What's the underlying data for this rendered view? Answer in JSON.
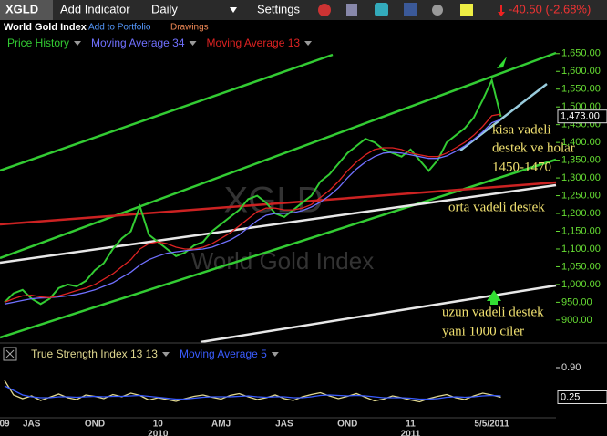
{
  "toolbar": {
    "symbol": "XGLD",
    "add_indicator": "Add Indicator",
    "interval": "Daily",
    "settings": "Settings",
    "change": "-40.50 (-2.68%)"
  },
  "header": {
    "name": "World Gold Index",
    "add_to_portfolio": "Add to Portfolio",
    "drawings": "Drawings"
  },
  "chart_data": [
    {
      "type": "line",
      "title": "World Gold Index",
      "watermark": "XGLD",
      "categories": [
        "09",
        null,
        null,
        "JAS",
        null,
        null,
        null,
        null,
        null,
        null,
        "OND",
        null,
        null,
        null,
        null,
        null,
        null,
        "10",
        null,
        null,
        null,
        null,
        null,
        null,
        "AMJ",
        null,
        null,
        null,
        null,
        null,
        null,
        "JAS",
        null,
        null,
        null,
        null,
        null,
        null,
        "OND",
        null,
        null,
        null,
        null,
        null,
        null,
        "11",
        null,
        null,
        null,
        null,
        null,
        null,
        null,
        null,
        "5/5/2011",
        null
      ],
      "x_sublabels": [
        null,
        null,
        null,
        null,
        null,
        null,
        null,
        null,
        null,
        null,
        null,
        null,
        null,
        null,
        null,
        null,
        null,
        "2010",
        null,
        null,
        null,
        null,
        null,
        null,
        null,
        null,
        null,
        null,
        null,
        null,
        null,
        null,
        null,
        null,
        null,
        null,
        null,
        null,
        null,
        null,
        null,
        null,
        null,
        null,
        null,
        "2011",
        null,
        null,
        null,
        null,
        null,
        null,
        null,
        null,
        null,
        null
      ],
      "series": [
        {
          "name": "Price History",
          "color": "#33cc33",
          "values": [
            950,
            975,
            985,
            960,
            945,
            960,
            990,
            1000,
            995,
            1010,
            1040,
            1060,
            1100,
            1130,
            1150,
            1220,
            1140,
            1120,
            1100,
            1080,
            1090,
            1110,
            1120,
            1150,
            1170,
            1190,
            1210,
            1240,
            1250,
            1230,
            1200,
            1190,
            1210,
            1230,
            1250,
            1290,
            1310,
            1340,
            1370,
            1390,
            1410,
            1400,
            1380,
            1370,
            1360,
            1380,
            1350,
            1320,
            1350,
            1400,
            1420,
            1440,
            1470,
            1520,
            1575,
            1473
          ]
        },
        {
          "name": "Moving Average 34",
          "color": "#7070ff",
          "values": [
            945,
            950,
            955,
            960,
            962,
            963,
            965,
            968,
            972,
            978,
            985,
            995,
            1005,
            1020,
            1035,
            1055,
            1070,
            1080,
            1088,
            1092,
            1095,
            1098,
            1100,
            1105,
            1115,
            1125,
            1140,
            1160,
            1180,
            1195,
            1200,
            1200,
            1202,
            1208,
            1218,
            1232,
            1250,
            1272,
            1300,
            1325,
            1345,
            1360,
            1370,
            1372,
            1370,
            1365,
            1360,
            1355,
            1355,
            1362,
            1375,
            1390,
            1408,
            1430,
            1455,
            1465
          ]
        },
        {
          "name": "Moving Average 13",
          "color": "#dd2222",
          "values": [
            950,
            960,
            968,
            970,
            965,
            963,
            968,
            975,
            983,
            990,
            1000,
            1015,
            1030,
            1050,
            1070,
            1100,
            1115,
            1120,
            1115,
            1105,
            1100,
            1100,
            1105,
            1115,
            1130,
            1145,
            1165,
            1185,
            1205,
            1215,
            1215,
            1210,
            1210,
            1215,
            1225,
            1245,
            1265,
            1290,
            1320,
            1345,
            1365,
            1380,
            1385,
            1385,
            1380,
            1370,
            1365,
            1360,
            1360,
            1370,
            1385,
            1400,
            1420,
            1445,
            1475,
            1480
          ]
        }
      ],
      "ylim": [
        838,
        1652
      ],
      "yticks": [
        {
          "value": 900,
          "label": "900.00"
        },
        {
          "value": 950,
          "label": "950.00"
        },
        {
          "value": 1000,
          "label": "1,000.00"
        },
        {
          "value": 1050,
          "label": "1,050.00"
        },
        {
          "value": 1100,
          "label": "1,100.00"
        },
        {
          "value": 1150,
          "label": "1,150.00"
        },
        {
          "value": 1200,
          "label": "1,200.00"
        },
        {
          "value": 1250,
          "label": "1,250.00"
        },
        {
          "value": 1300,
          "label": "1,300.00"
        },
        {
          "value": 1350,
          "label": "1,350.00"
        },
        {
          "value": 1400,
          "label": "1,400.00"
        },
        {
          "value": 1450,
          "label": "1,450.00"
        },
        {
          "value": 1500,
          "label": "1,500.00"
        },
        {
          "value": 1550,
          "label": "1,550.00"
        },
        {
          "value": 1600,
          "label": "1,600.00"
        },
        {
          "value": 1650,
          "label": "1,650.00"
        }
      ],
      "last_label": {
        "value": 1473,
        "label": "1,473.00"
      },
      "grid": false,
      "annotations": [
        "kisa vadeli",
        "destek ve holar",
        "1450-1470",
        "orta vadeli destek",
        "uzun vadeli destek",
        "yani 1000 ciler"
      ]
    },
    {
      "type": "line",
      "series": [
        {
          "name": "True Strength Index 13 13",
          "color": "#e0d890",
          "values": [
            0.62,
            0.3,
            0.22,
            0.28,
            0.18,
            0.25,
            0.32,
            0.24,
            0.2,
            0.3,
            0.27,
            0.22,
            0.31,
            0.26,
            0.34,
            0.29,
            0.19,
            0.24,
            0.2,
            0.16,
            0.22,
            0.27,
            0.3,
            0.25,
            0.21,
            0.29,
            0.33,
            0.26,
            0.2,
            0.24,
            0.3,
            0.22,
            0.18,
            0.26,
            0.31,
            0.35,
            0.28,
            0.22,
            0.27,
            0.33,
            0.25,
            0.17,
            0.21,
            0.28,
            0.24,
            0.19,
            0.15,
            0.22,
            0.27,
            0.31,
            0.24,
            0.2,
            0.28,
            0.34,
            0.3,
            0.25
          ]
        },
        {
          "name": "Moving Average 5",
          "color": "#3a5cff",
          "values": [
            0.5,
            0.4,
            0.3,
            0.26,
            0.24,
            0.24,
            0.26,
            0.26,
            0.25,
            0.26,
            0.27,
            0.26,
            0.27,
            0.27,
            0.28,
            0.29,
            0.27,
            0.25,
            0.23,
            0.21,
            0.21,
            0.23,
            0.25,
            0.26,
            0.26,
            0.26,
            0.27,
            0.28,
            0.26,
            0.25,
            0.26,
            0.26,
            0.24,
            0.24,
            0.26,
            0.29,
            0.3,
            0.29,
            0.28,
            0.29,
            0.28,
            0.26,
            0.24,
            0.24,
            0.24,
            0.23,
            0.21,
            0.21,
            0.22,
            0.25,
            0.26,
            0.25,
            0.26,
            0.28,
            0.29,
            0.28
          ]
        }
      ],
      "ylim": [
        -0.2,
        1.0
      ],
      "yticks": [
        {
          "value": 0.9,
          "label": "0.90"
        }
      ],
      "last_label": {
        "value": 0.25,
        "label": "0.25"
      }
    }
  ]
}
